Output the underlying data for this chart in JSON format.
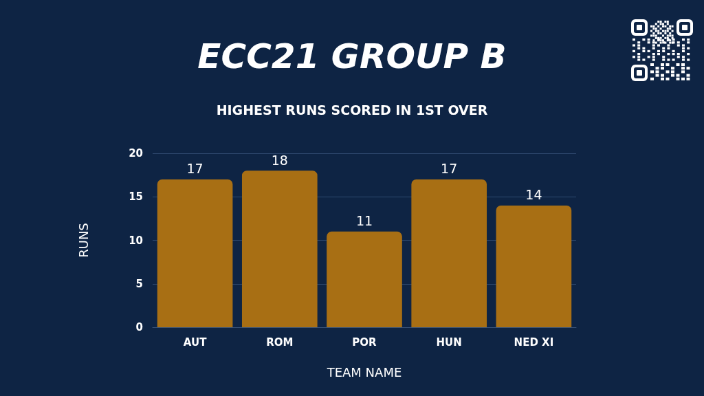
{
  "chart_data": {
    "type": "bar",
    "title": "ECC21 GROUP B",
    "subtitle": "HIGHEST RUNS SCORED IN 1ST OVER",
    "xlabel": "TEAM NAME",
    "ylabel": "RUNS",
    "categories": [
      "AUT",
      "ROM",
      "POR",
      "HUN",
      "NED XI"
    ],
    "values": [
      17,
      18,
      11,
      17,
      14
    ],
    "color": "#a86f14",
    "ylim": [
      0,
      20
    ],
    "yticks": [
      0,
      5,
      10,
      15,
      20
    ],
    "grid": "y",
    "data_labels": true
  }
}
